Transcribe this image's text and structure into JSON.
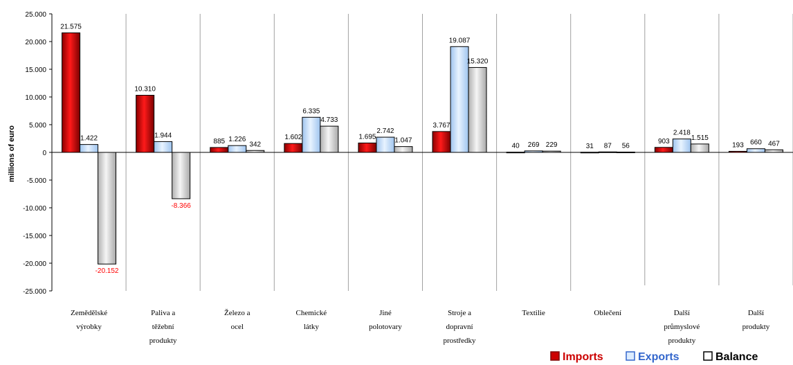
{
  "chart_data": {
    "type": "bar",
    "ylabel": "millions of euro",
    "ylim": [
      -25000,
      25000
    ],
    "yticks": [
      25000,
      20000,
      15000,
      10000,
      5000,
      0,
      -5000,
      -10000,
      -15000,
      -20000,
      -25000
    ],
    "ytick_labels": [
      "25.000",
      "20.000",
      "15.000",
      "10.000",
      "5.000",
      "0",
      "-5.000",
      "-10.000",
      "-15.000",
      "-20.000",
      "-25.000"
    ],
    "grid": "vertical",
    "legend_position": "bottom-right",
    "categories": [
      [
        "Zemědělské",
        "výrobky"
      ],
      [
        "Paliva a",
        "těžební",
        "produkty"
      ],
      [
        "Železo a",
        "ocel"
      ],
      [
        "Chemické",
        "látky"
      ],
      [
        "Jiné",
        "polotovary"
      ],
      [
        "Stroje a",
        "dopravní",
        "prostředky"
      ],
      [
        "Textilie"
      ],
      [
        "Oblečení"
      ],
      [
        "Další",
        "průmyslové",
        "produkty"
      ],
      [
        "Další",
        "produkty"
      ]
    ],
    "series": [
      {
        "name": "Imports",
        "color": "#cc0000",
        "values": [
          21575,
          10310,
          885,
          1602,
          1695,
          3767,
          40,
          31,
          903,
          193
        ],
        "labels": [
          "21.575",
          "10.310",
          "885",
          "1.602",
          "1.695",
          "3.767",
          "40",
          "31",
          "903",
          "193"
        ]
      },
      {
        "name": "Exports",
        "color": "#cce5ff",
        "values": [
          1422,
          1944,
          1226,
          6335,
          2742,
          19087,
          269,
          87,
          2418,
          660
        ],
        "labels": [
          "1.422",
          "1.944",
          "1.226",
          "6.335",
          "2.742",
          "19.087",
          "269",
          "87",
          "2.418",
          "660"
        ]
      },
      {
        "name": "Balance",
        "color": "#e6e6e6",
        "values": [
          -20152,
          -8366,
          342,
          4733,
          1047,
          15320,
          229,
          56,
          1515,
          467
        ],
        "labels": [
          "-20.152",
          "-8.366",
          "342",
          "4.733",
          "1.047",
          "15.320",
          "229",
          "56",
          "1.515",
          "467"
        ]
      }
    ]
  }
}
